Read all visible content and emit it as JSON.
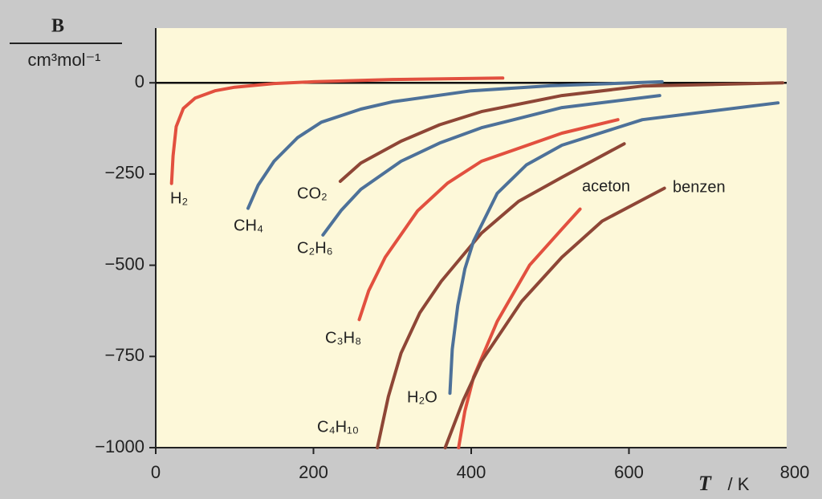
{
  "chart_data": {
    "type": "line",
    "ylabel": "B",
    "ylabel_unit": "cm³mol⁻¹",
    "xlabel_var": "T",
    "xlabel_unit": "/ K",
    "xlim": [
      0,
      800
    ],
    "ylim": [
      -1000,
      150
    ],
    "xticks": [
      0,
      200,
      400,
      600,
      800
    ],
    "yticks": [
      0,
      {
        "value": -250,
        "label": "−250"
      },
      {
        "value": -500,
        "label": "−500"
      },
      {
        "value": -750,
        "label": "−750"
      },
      {
        "value": -1000,
        "label": "−1000"
      }
    ],
    "zero_line": true,
    "series": [
      {
        "name": "H₂",
        "color": "#e2503f",
        "x": [
          20,
          22,
          26,
          35,
          50,
          75,
          100,
          150,
          200,
          300,
          440
        ],
        "values": [
          -276,
          -200,
          -120,
          -70,
          -42,
          -22,
          -12,
          -2,
          3,
          9,
          13
        ]
      },
      {
        "name": "CH₄",
        "color": "#4d7199",
        "x": [
          117,
          130,
          150,
          180,
          210,
          260,
          300,
          400,
          500,
          642
        ],
        "values": [
          -344,
          -280,
          -215,
          -150,
          -108,
          -72,
          -52,
          -22,
          -8,
          3
        ]
      },
      {
        "name": "CO₂",
        "color": "#8e4636",
        "x": [
          234,
          260,
          311,
          360,
          413,
          515,
          617,
          795
        ],
        "values": [
          -270,
          -220,
          -160,
          -115,
          -79,
          -35,
          -9,
          0
        ]
      },
      {
        "name": "C₂H₆",
        "color": "#4d7199",
        "x": [
          212,
          235,
          260,
          311,
          360,
          413,
          515,
          639
        ],
        "values": [
          -417,
          -350,
          -292,
          -215,
          -165,
          -123,
          -68,
          -35
        ]
      },
      {
        "name": "C₃H₈",
        "color": "#e2503f",
        "x": [
          258,
          270,
          291,
          332,
          370,
          413,
          515,
          586
        ],
        "values": [
          -649,
          -570,
          -478,
          -351,
          -275,
          -215,
          -138,
          -101
        ]
      },
      {
        "name": "C₄H₁₀",
        "color": "#8e4636",
        "x": [
          281,
          295,
          311,
          335,
          362,
          413,
          460,
          515,
          594
        ],
        "values": [
          -1000,
          -860,
          -741,
          -630,
          -544,
          -412,
          -325,
          -259,
          -167
        ]
      },
      {
        "name": "H₂O",
        "color": "#4d7199",
        "x": [
          373,
          376,
          383,
          392,
          403,
          433,
          470,
          515,
          617,
          789
        ],
        "values": [
          -851,
          -730,
          -610,
          -510,
          -434,
          -303,
          -225,
          -171,
          -101,
          -55
        ]
      },
      {
        "name": "aceton",
        "color": "#e2503f",
        "x": [
          384,
          392,
          403,
          433,
          474,
          515,
          538
        ],
        "values": [
          -1000,
          -900,
          -807,
          -654,
          -500,
          -401,
          -346
        ]
      },
      {
        "name": "benzen",
        "color": "#8e4636",
        "x": [
          367,
          390,
          413,
          464,
          515,
          566,
          645
        ],
        "values": [
          -1000,
          -870,
          -763,
          -599,
          -478,
          -379,
          -289
        ]
      }
    ]
  }
}
